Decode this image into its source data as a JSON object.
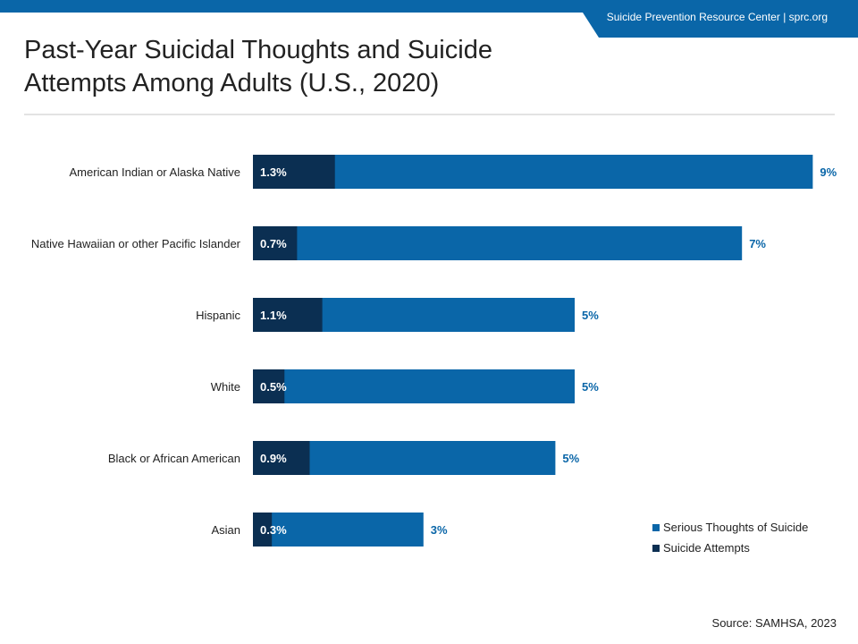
{
  "header": {
    "org": "Suicide Prevention Resource Center  |  sprc.org"
  },
  "title": "Past-Year Suicidal Thoughts and Suicide Attempts Among Adults (U.S., 2020)",
  "source": "Source: SAMHSA, 2023",
  "colors": {
    "thoughts": "#0a66a8",
    "attempts": "#0b2f52",
    "brand": "#0a66a8"
  },
  "chart_data": {
    "type": "bar",
    "orientation": "horizontal",
    "stacked": "overlay",
    "categories": [
      "American Indian or Alaska Native",
      "Native Hawaiian or other Pacific Islander",
      "Hispanic",
      "White",
      "Black or African American",
      "Asian"
    ],
    "series": [
      {
        "name": "Serious Thoughts of Suicide",
        "values": [
          9,
          7,
          5,
          5,
          5,
          3
        ],
        "labels": [
          "9%",
          "7%",
          "5%",
          "5%",
          "5%",
          "3%"
        ]
      },
      {
        "name": "Suicide Attempts",
        "values": [
          1.3,
          0.7,
          1.1,
          0.5,
          0.9,
          0.3
        ],
        "labels": [
          "1.3%",
          "0.7%",
          "1.1%",
          "0.5%",
          "0.9%",
          "0.3%"
        ]
      }
    ],
    "display_lengths": [
      8.7,
      7.6,
      5.0,
      5.0,
      4.7,
      2.65
    ],
    "legend_position": "bottom-right",
    "grid": false
  }
}
